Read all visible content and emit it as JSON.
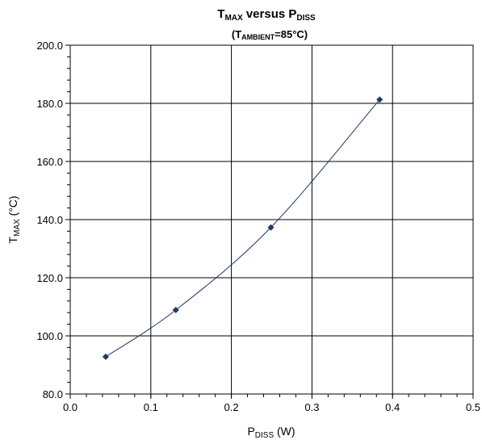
{
  "chart_data": {
    "type": "scatter",
    "title": {
      "main": "T",
      "main_sub": "MAX",
      "mid": " versus P",
      "mid_sub": "DISS"
    },
    "subtitle": {
      "pre": "(T",
      "sub": "AMBIENT",
      "post": "=85°C)"
    },
    "xlabel": {
      "main": "P",
      "sub": "DISS",
      "post": " (W)"
    },
    "ylabel": {
      "main": "T",
      "sub": "MAX",
      "post": " (°C)"
    },
    "xlim": [
      0.0,
      0.5
    ],
    "ylim": [
      80.0,
      200.0
    ],
    "x_ticks": [
      "0.0",
      "0.1",
      "0.2",
      "0.3",
      "0.4",
      "0.5"
    ],
    "y_ticks": [
      "80.0",
      "100.0",
      "120.0",
      "140.0",
      "160.0",
      "180.0",
      "200.0"
    ],
    "grid": true,
    "series": [
      {
        "color": "#1f3864",
        "marker": "diamond",
        "smoothed_line": true,
        "points": [
          {
            "x": 0.044,
            "y": 92.8
          },
          {
            "x": 0.131,
            "y": 108.9
          },
          {
            "x": 0.249,
            "y": 137.3
          },
          {
            "x": 0.384,
            "y": 181.3
          }
        ]
      }
    ]
  }
}
